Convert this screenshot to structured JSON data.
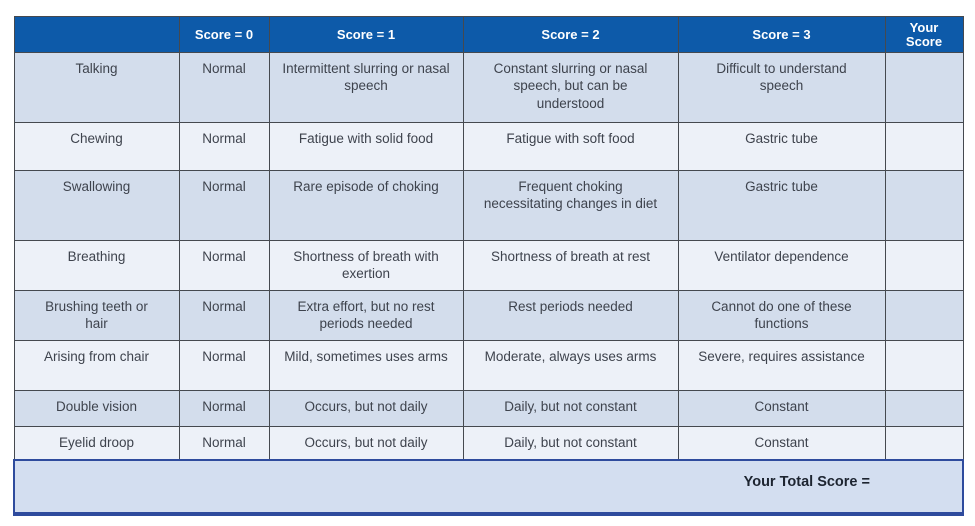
{
  "colors": {
    "header_background": "#0d5aa9",
    "header_text": "#ffffff",
    "row_shade_dark": "#d3ddec",
    "row_shade_light": "#edf1f8",
    "cell_border": "#45494f",
    "total_box_background": "#d3def0",
    "total_box_border": "#2e4b9d",
    "body_text": "#3e434d"
  },
  "table": {
    "headers": {
      "activity": "",
      "score0": "Score = 0",
      "score1": "Score = 1",
      "score2": "Score = 2",
      "score3": "Score = 3",
      "your_score": "Your Score"
    },
    "rows": [
      {
        "activity": "Talking",
        "score0": "Normal",
        "score1": "Intermittent slurring or nasal speech",
        "score2": "Constant slurring or nasal speech, but can be understood",
        "score3": "Difficult to understand speech",
        "your_score": ""
      },
      {
        "activity": "Chewing",
        "score0": "Normal",
        "score1": "Fatigue with solid food",
        "score2": "Fatigue with soft food",
        "score3": "Gastric tube",
        "your_score": ""
      },
      {
        "activity": "Swallowing",
        "score0": "Normal",
        "score1": "Rare episode of choking",
        "score2": "Frequent choking necessitating changes in diet",
        "score3": "Gastric tube",
        "your_score": ""
      },
      {
        "activity": "Breathing",
        "score0": "Normal",
        "score1": "Shortness of breath with exertion",
        "score2": "Shortness of breath at rest",
        "score3": "Ventilator dependence",
        "your_score": ""
      },
      {
        "activity": "Brushing teeth or hair",
        "score0": "Normal",
        "score1": "Extra effort, but no rest periods needed",
        "score2": "Rest periods needed",
        "score3": "Cannot do one of these functions",
        "your_score": ""
      },
      {
        "activity": "Arising from chair",
        "score0": "Normal",
        "score1": "Mild, sometimes uses arms",
        "score2": "Moderate, always uses arms",
        "score3": "Severe, requires assistance",
        "your_score": ""
      },
      {
        "activity": "Double vision",
        "score0": "Normal",
        "score1": "Occurs, but not daily",
        "score2": "Daily, but not constant",
        "score3": "Constant",
        "your_score": ""
      },
      {
        "activity": "Eyelid droop",
        "score0": "Normal",
        "score1": "Occurs, but not daily",
        "score2": "Daily, but not constant",
        "score3": "Constant",
        "your_score": ""
      }
    ],
    "footer": {
      "total_label": "Your Total Score ="
    }
  }
}
